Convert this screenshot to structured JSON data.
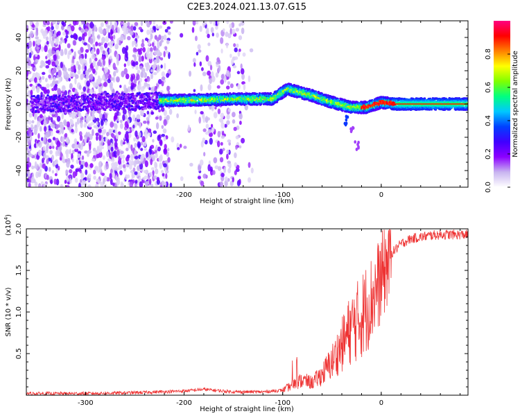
{
  "figure": {
    "title": "C2E3.2024.021.13.07.G15"
  },
  "chart_data": [
    {
      "type": "heatmap",
      "xlabel": "Height of straight line (km)",
      "ylabel": "Frequency (Hz)",
      "xlim": [
        -360,
        88
      ],
      "ylim": [
        -50,
        50
      ],
      "xticks": [
        -300,
        -200,
        -100,
        0
      ],
      "yticks": [
        -40,
        -20,
        0,
        20,
        40
      ],
      "colorbar": {
        "label": "Normalized spectral amplitude",
        "range": [
          0,
          1
        ],
        "ticks": [
          "0.0",
          "0.2",
          "0.4",
          "0.6",
          "0.8"
        ],
        "colormap": [
          "#ffffff",
          "#c8b4f0",
          "#8c00ff",
          "#4000ff",
          "#0040ff",
          "#00c8ff",
          "#00ff80",
          "#80ff00",
          "#ffff00",
          "#ff8000",
          "#ff0000",
          "#ff0080"
        ]
      },
      "features": {
        "noise_region_km": [
          -360,
          -130
        ],
        "main_trace_freq_hz": [
          [
            -350,
            0
          ],
          [
            -220,
            2
          ],
          [
            -150,
            3
          ],
          [
            -110,
            3
          ],
          [
            -95,
            9
          ],
          [
            -70,
            5
          ],
          [
            -50,
            1
          ],
          [
            -30,
            -2
          ],
          [
            -15,
            -2
          ],
          [
            0,
            1
          ],
          [
            15,
            0
          ],
          [
            88,
            0
          ]
        ],
        "branch_freq_hz": [
          [
            -35,
            -10
          ],
          [
            -30,
            -16
          ],
          [
            -25,
            -25
          ]
        ]
      }
    },
    {
      "type": "line",
      "xlabel": "Height of straight line (km)",
      "ylabel": "SNR (10 * v/v)",
      "y_multiplier": "(x10",
      "y_multiplier_exp": "4",
      "y_multiplier_close": ")",
      "xlim": [
        -360,
        88
      ],
      "ylim": [
        0,
        2.0
      ],
      "xticks": [
        -300,
        -200,
        -100,
        0
      ],
      "yticks": [
        0.5,
        1.0,
        1.5,
        2.0
      ],
      "ytick_labels": [
        "0.5",
        "1.0",
        "1.5",
        "2.0"
      ],
      "series": [
        {
          "color": "#ee3333",
          "x": [
            -360,
            -300,
            -250,
            -200,
            -180,
            -150,
            -120,
            -100,
            -90,
            -80,
            -70,
            -60,
            -50,
            -40,
            -30,
            -20,
            -10,
            0,
            10,
            20,
            30,
            40,
            50,
            60,
            70,
            80,
            88
          ],
          "y": [
            0.02,
            0.02,
            0.03,
            0.05,
            0.07,
            0.04,
            0.04,
            0.06,
            0.12,
            0.18,
            0.15,
            0.25,
            0.4,
            0.6,
            0.82,
            0.95,
            1.15,
            1.4,
            1.7,
            1.82,
            1.88,
            1.9,
            1.92,
            1.93,
            1.93,
            1.93,
            1.93
          ]
        }
      ]
    }
  ]
}
